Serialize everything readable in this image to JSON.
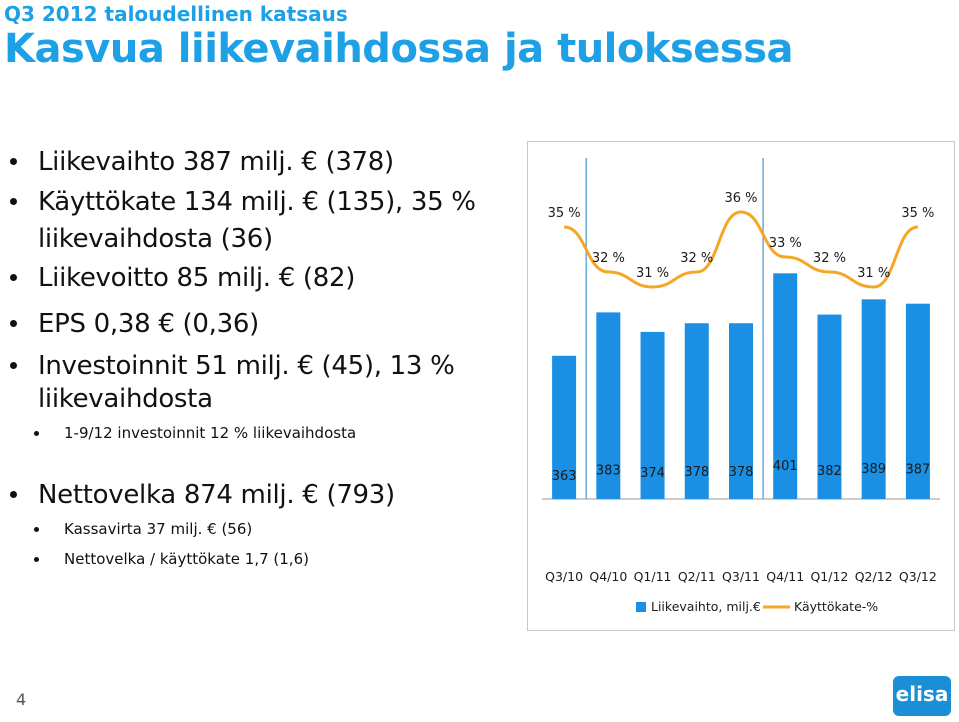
{
  "header": {
    "subtitle": "Q3 2012 taloudellinen katsaus",
    "title": "Kasvua liikevaihdossa ja tuloksessa"
  },
  "bullets": [
    {
      "level": 1,
      "text": "Liikevaihto 387 milj. € (378)"
    },
    {
      "level": 1,
      "text": "Käyttökate 134 milj. € (135), 35 %"
    },
    {
      "level": 1,
      "text": "liikevaihdosta (36)",
      "continuation": true
    },
    {
      "level": 1,
      "text": "Liikevoitto 85 milj. € (82)"
    },
    {
      "level": 1,
      "text": "EPS 0,38 € (0,36)"
    },
    {
      "level": 1,
      "text": "Investoinnit 51 milj. € (45), 13 %"
    },
    {
      "level": 1,
      "text": "liikevaihdosta",
      "continuation": true
    },
    {
      "level": 2,
      "text": "1-9/12 investoinnit 12 % liikevaihdosta"
    },
    {
      "level": 1,
      "text": "Nettovelka 874 milj. € (793)"
    },
    {
      "level": 2,
      "text": "Kassavirta 37 milj. € (56)"
    },
    {
      "level": 2,
      "text": "Nettovelka / käyttökate 1,7 (1,6)"
    }
  ],
  "chart_data": {
    "type": "bar",
    "categories": [
      "Q3/10",
      "Q4/10",
      "Q1/11",
      "Q2/11",
      "Q3/11",
      "Q4/11",
      "Q1/12",
      "Q2/12",
      "Q3/12"
    ],
    "series": [
      {
        "name": "Liikevaihto, milj.€",
        "type": "bar",
        "color": "#1a8fe3",
        "values": [
          363,
          383,
          374,
          378,
          378,
          401,
          382,
          389,
          387
        ]
      },
      {
        "name": "Käyttökate-%",
        "type": "line",
        "color": "#f5a623",
        "values": [
          35,
          32,
          31,
          32,
          36,
          33,
          32,
          31,
          35
        ],
        "labels": [
          "35 %",
          "32 %",
          "31 %",
          "32 %",
          "36 %",
          "33 %",
          "32 %",
          "31 %",
          "35 %"
        ]
      }
    ],
    "legend": [
      "Liikevaihto, milj.€",
      "Käyttökate-%"
    ],
    "legend_position": "bottom",
    "dividers_after_category": [
      0,
      4
    ]
  },
  "footer": {
    "page_number": "4",
    "logo_text": "elisa"
  }
}
